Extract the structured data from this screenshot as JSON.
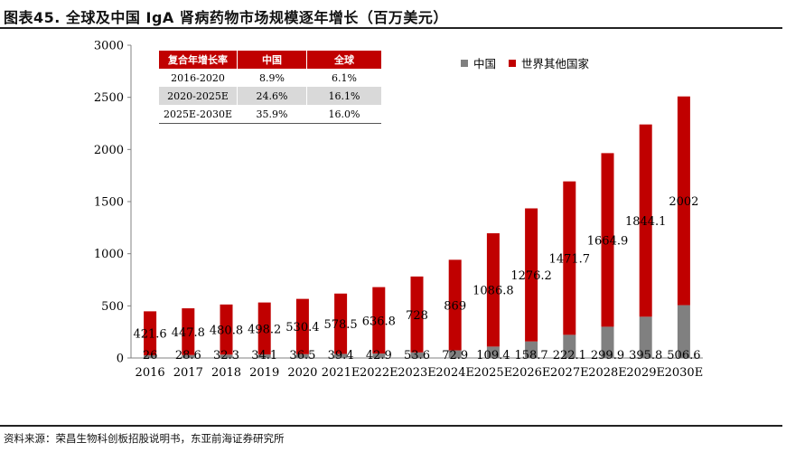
{
  "title": "图表45. 全球及中国 IgA 肾病药物市场规模逐年增长（百万美元）",
  "source": "资料来源：荣昌生物科创板招股说明书，东亚前海证券研究所",
  "colors": {
    "china": "#808080",
    "row": "#c00000",
    "header": "#c00000"
  },
  "legend": {
    "china": "中国",
    "row": "世界其他国家"
  },
  "cagr_table": {
    "headers": [
      "复合年增长率",
      "中国",
      "全球"
    ],
    "rows": [
      [
        "2016-2020",
        "8.9%",
        "6.1%"
      ],
      [
        "2020-2025E",
        "24.6%",
        "16.1%"
      ],
      [
        "2025E-2030E",
        "35.9%",
        "16.0%"
      ]
    ]
  },
  "chart_data": {
    "type": "bar",
    "stacked": true,
    "categories": [
      "2016",
      "2017",
      "2018",
      "2019",
      "2020",
      "2021E",
      "2022E",
      "2023E",
      "2024E",
      "2025E",
      "2026E",
      "2027E",
      "2028E",
      "2029E",
      "2030E"
    ],
    "series": [
      {
        "name": "中国",
        "values": [
          26,
          28.6,
          32.3,
          34.1,
          36.5,
          39.4,
          42.9,
          53.6,
          72.9,
          109.4,
          158.7,
          222.1,
          299.9,
          395.8,
          506.6
        ]
      },
      {
        "name": "世界其他国家",
        "values": [
          421.6,
          447.8,
          480.8,
          498.2,
          530.4,
          578.5,
          636.8,
          728,
          869,
          1086.8,
          1276.2,
          1471.7,
          1664.9,
          1844.1,
          2002
        ]
      }
    ],
    "labels": {
      "china": [
        "26",
        "28.6",
        "32.3",
        "34.1",
        "36.5",
        "39.4",
        "42.9",
        "53.6",
        "72.9",
        "109.4",
        "158.7",
        "222.1",
        "299.9",
        "395.8",
        "506.6"
      ],
      "row": [
        "421.6",
        "447.8",
        "480.8",
        "498.2",
        "530.4",
        "578.5",
        "636.8",
        "728",
        "869",
        "1086.8",
        "1276.2",
        "1471.7",
        "1664.9",
        "1844.1",
        "2002"
      ]
    },
    "yticks": [
      "0",
      "500",
      "1000",
      "1500",
      "2000",
      "2500",
      "3000"
    ],
    "ylim": [
      0,
      3000
    ],
    "xlabel": "",
    "ylabel": "",
    "grid": false,
    "legend_position": "top-right"
  }
}
